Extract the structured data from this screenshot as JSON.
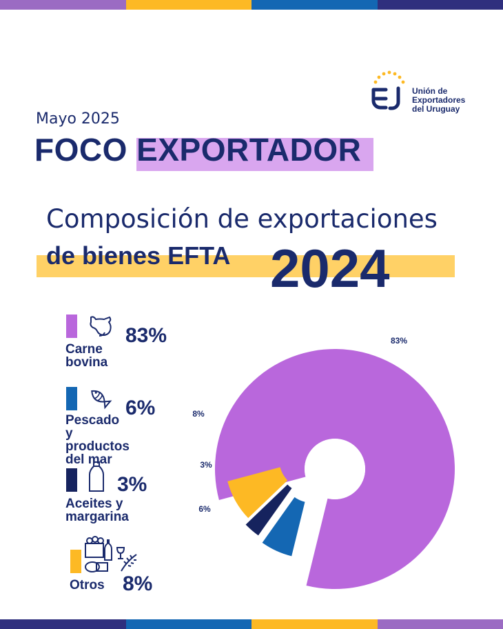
{
  "header": {
    "date": "Mayo 2025",
    "title": "FOCO EXPORTADOR",
    "logo_lines": [
      "Unión de",
      "Exportadores",
      "del Uruguay"
    ]
  },
  "heading": {
    "line1": "Composición de exportaciones",
    "line2": "de bienes EFTA",
    "year": "2024"
  },
  "legend": [
    {
      "label": "Carne\nbovina",
      "pct": "83%",
      "color": "#b967dc",
      "icon": "cow-icon"
    },
    {
      "label": "Pescado\ny productos\ndel mar",
      "pct": "6%",
      "color": "#1467b3",
      "icon": "fish-icon"
    },
    {
      "label": "Aceites y\nmargarina",
      "pct": "3%",
      "color": "#16235e",
      "icon": "bottle-icon"
    },
    {
      "label": "Otros",
      "pct": "8%",
      "color": "#fdb924",
      "icon": "assorted-goods-icon"
    }
  ],
  "colors": {
    "purple": "#b967dc",
    "blue": "#1467b3",
    "navy": "#16235e",
    "yellow": "#fdb924",
    "title_highlight": "#d9a6ef",
    "subtitle_highlight": "#ffd166",
    "text": "#1a2a6c"
  },
  "chart_data": {
    "type": "pie",
    "title": "Composición de exportaciones de bienes EFTA 2024",
    "donut": true,
    "slices": [
      {
        "name": "Carne bovina",
        "value": 83,
        "label": "83%",
        "color": "#b967dc"
      },
      {
        "name": "Pescado y productos del mar",
        "value": 6,
        "label": "6%",
        "color": "#1467b3"
      },
      {
        "name": "Aceites y margarina",
        "value": 3,
        "label": "3%",
        "color": "#16235e"
      },
      {
        "name": "Otros",
        "value": 8,
        "label": "8%",
        "color": "#fdb924"
      }
    ]
  }
}
